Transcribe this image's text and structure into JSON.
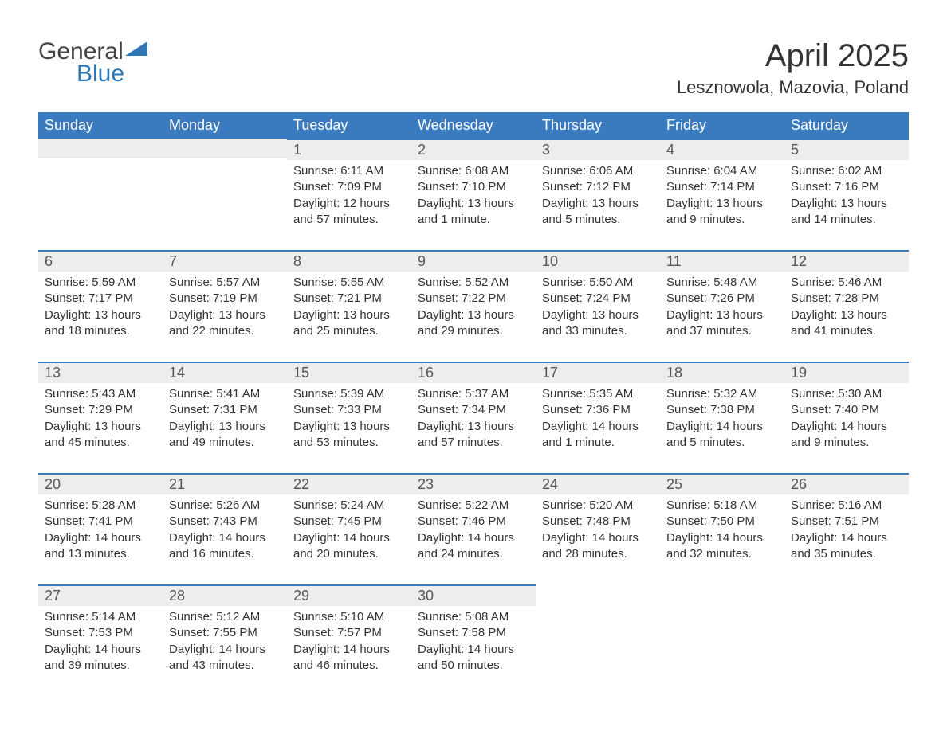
{
  "logo": {
    "text1": "General",
    "text2": "Blue",
    "icon_color": "#2f76b5",
    "text1_color": "#444444",
    "text2_color": "#2f76b5"
  },
  "title": "April 2025",
  "location": "Lesznowola, Mazovia, Poland",
  "colors": {
    "header_bg": "#3a7bbf",
    "header_text": "#ffffff",
    "daynum_bg": "#ededed",
    "daynum_text": "#555555",
    "body_text": "#333333",
    "row_border": "#3a7bbf",
    "background": "#ffffff"
  },
  "typography": {
    "month_title_fontsize": 40,
    "location_fontsize": 22,
    "weekday_fontsize": 18,
    "daynum_fontsize": 18,
    "body_fontsize": 15,
    "logo_fontsize": 30
  },
  "weekdays": [
    "Sunday",
    "Monday",
    "Tuesday",
    "Wednesday",
    "Thursday",
    "Friday",
    "Saturday"
  ],
  "weeks": [
    [
      {
        "day": "",
        "lines": []
      },
      {
        "day": "",
        "lines": []
      },
      {
        "day": "1",
        "lines": [
          "Sunrise: 6:11 AM",
          "Sunset: 7:09 PM",
          "Daylight: 12 hours",
          "and 57 minutes."
        ]
      },
      {
        "day": "2",
        "lines": [
          "Sunrise: 6:08 AM",
          "Sunset: 7:10 PM",
          "Daylight: 13 hours",
          "and 1 minute."
        ]
      },
      {
        "day": "3",
        "lines": [
          "Sunrise: 6:06 AM",
          "Sunset: 7:12 PM",
          "Daylight: 13 hours",
          "and 5 minutes."
        ]
      },
      {
        "day": "4",
        "lines": [
          "Sunrise: 6:04 AM",
          "Sunset: 7:14 PM",
          "Daylight: 13 hours",
          "and 9 minutes."
        ]
      },
      {
        "day": "5",
        "lines": [
          "Sunrise: 6:02 AM",
          "Sunset: 7:16 PM",
          "Daylight: 13 hours",
          "and 14 minutes."
        ]
      }
    ],
    [
      {
        "day": "6",
        "lines": [
          "Sunrise: 5:59 AM",
          "Sunset: 7:17 PM",
          "Daylight: 13 hours",
          "and 18 minutes."
        ]
      },
      {
        "day": "7",
        "lines": [
          "Sunrise: 5:57 AM",
          "Sunset: 7:19 PM",
          "Daylight: 13 hours",
          "and 22 minutes."
        ]
      },
      {
        "day": "8",
        "lines": [
          "Sunrise: 5:55 AM",
          "Sunset: 7:21 PM",
          "Daylight: 13 hours",
          "and 25 minutes."
        ]
      },
      {
        "day": "9",
        "lines": [
          "Sunrise: 5:52 AM",
          "Sunset: 7:22 PM",
          "Daylight: 13 hours",
          "and 29 minutes."
        ]
      },
      {
        "day": "10",
        "lines": [
          "Sunrise: 5:50 AM",
          "Sunset: 7:24 PM",
          "Daylight: 13 hours",
          "and 33 minutes."
        ]
      },
      {
        "day": "11",
        "lines": [
          "Sunrise: 5:48 AM",
          "Sunset: 7:26 PM",
          "Daylight: 13 hours",
          "and 37 minutes."
        ]
      },
      {
        "day": "12",
        "lines": [
          "Sunrise: 5:46 AM",
          "Sunset: 7:28 PM",
          "Daylight: 13 hours",
          "and 41 minutes."
        ]
      }
    ],
    [
      {
        "day": "13",
        "lines": [
          "Sunrise: 5:43 AM",
          "Sunset: 7:29 PM",
          "Daylight: 13 hours",
          "and 45 minutes."
        ]
      },
      {
        "day": "14",
        "lines": [
          "Sunrise: 5:41 AM",
          "Sunset: 7:31 PM",
          "Daylight: 13 hours",
          "and 49 minutes."
        ]
      },
      {
        "day": "15",
        "lines": [
          "Sunrise: 5:39 AM",
          "Sunset: 7:33 PM",
          "Daylight: 13 hours",
          "and 53 minutes."
        ]
      },
      {
        "day": "16",
        "lines": [
          "Sunrise: 5:37 AM",
          "Sunset: 7:34 PM",
          "Daylight: 13 hours",
          "and 57 minutes."
        ]
      },
      {
        "day": "17",
        "lines": [
          "Sunrise: 5:35 AM",
          "Sunset: 7:36 PM",
          "Daylight: 14 hours",
          "and 1 minute."
        ]
      },
      {
        "day": "18",
        "lines": [
          "Sunrise: 5:32 AM",
          "Sunset: 7:38 PM",
          "Daylight: 14 hours",
          "and 5 minutes."
        ]
      },
      {
        "day": "19",
        "lines": [
          "Sunrise: 5:30 AM",
          "Sunset: 7:40 PM",
          "Daylight: 14 hours",
          "and 9 minutes."
        ]
      }
    ],
    [
      {
        "day": "20",
        "lines": [
          "Sunrise: 5:28 AM",
          "Sunset: 7:41 PM",
          "Daylight: 14 hours",
          "and 13 minutes."
        ]
      },
      {
        "day": "21",
        "lines": [
          "Sunrise: 5:26 AM",
          "Sunset: 7:43 PM",
          "Daylight: 14 hours",
          "and 16 minutes."
        ]
      },
      {
        "day": "22",
        "lines": [
          "Sunrise: 5:24 AM",
          "Sunset: 7:45 PM",
          "Daylight: 14 hours",
          "and 20 minutes."
        ]
      },
      {
        "day": "23",
        "lines": [
          "Sunrise: 5:22 AM",
          "Sunset: 7:46 PM",
          "Daylight: 14 hours",
          "and 24 minutes."
        ]
      },
      {
        "day": "24",
        "lines": [
          "Sunrise: 5:20 AM",
          "Sunset: 7:48 PM",
          "Daylight: 14 hours",
          "and 28 minutes."
        ]
      },
      {
        "day": "25",
        "lines": [
          "Sunrise: 5:18 AM",
          "Sunset: 7:50 PM",
          "Daylight: 14 hours",
          "and 32 minutes."
        ]
      },
      {
        "day": "26",
        "lines": [
          "Sunrise: 5:16 AM",
          "Sunset: 7:51 PM",
          "Daylight: 14 hours",
          "and 35 minutes."
        ]
      }
    ],
    [
      {
        "day": "27",
        "lines": [
          "Sunrise: 5:14 AM",
          "Sunset: 7:53 PM",
          "Daylight: 14 hours",
          "and 39 minutes."
        ]
      },
      {
        "day": "28",
        "lines": [
          "Sunrise: 5:12 AM",
          "Sunset: 7:55 PM",
          "Daylight: 14 hours",
          "and 43 minutes."
        ]
      },
      {
        "day": "29",
        "lines": [
          "Sunrise: 5:10 AM",
          "Sunset: 7:57 PM",
          "Daylight: 14 hours",
          "and 46 minutes."
        ]
      },
      {
        "day": "30",
        "lines": [
          "Sunrise: 5:08 AM",
          "Sunset: 7:58 PM",
          "Daylight: 14 hours",
          "and 50 minutes."
        ]
      },
      {
        "day": "",
        "lines": []
      },
      {
        "day": "",
        "lines": []
      },
      {
        "day": "",
        "lines": []
      }
    ]
  ]
}
